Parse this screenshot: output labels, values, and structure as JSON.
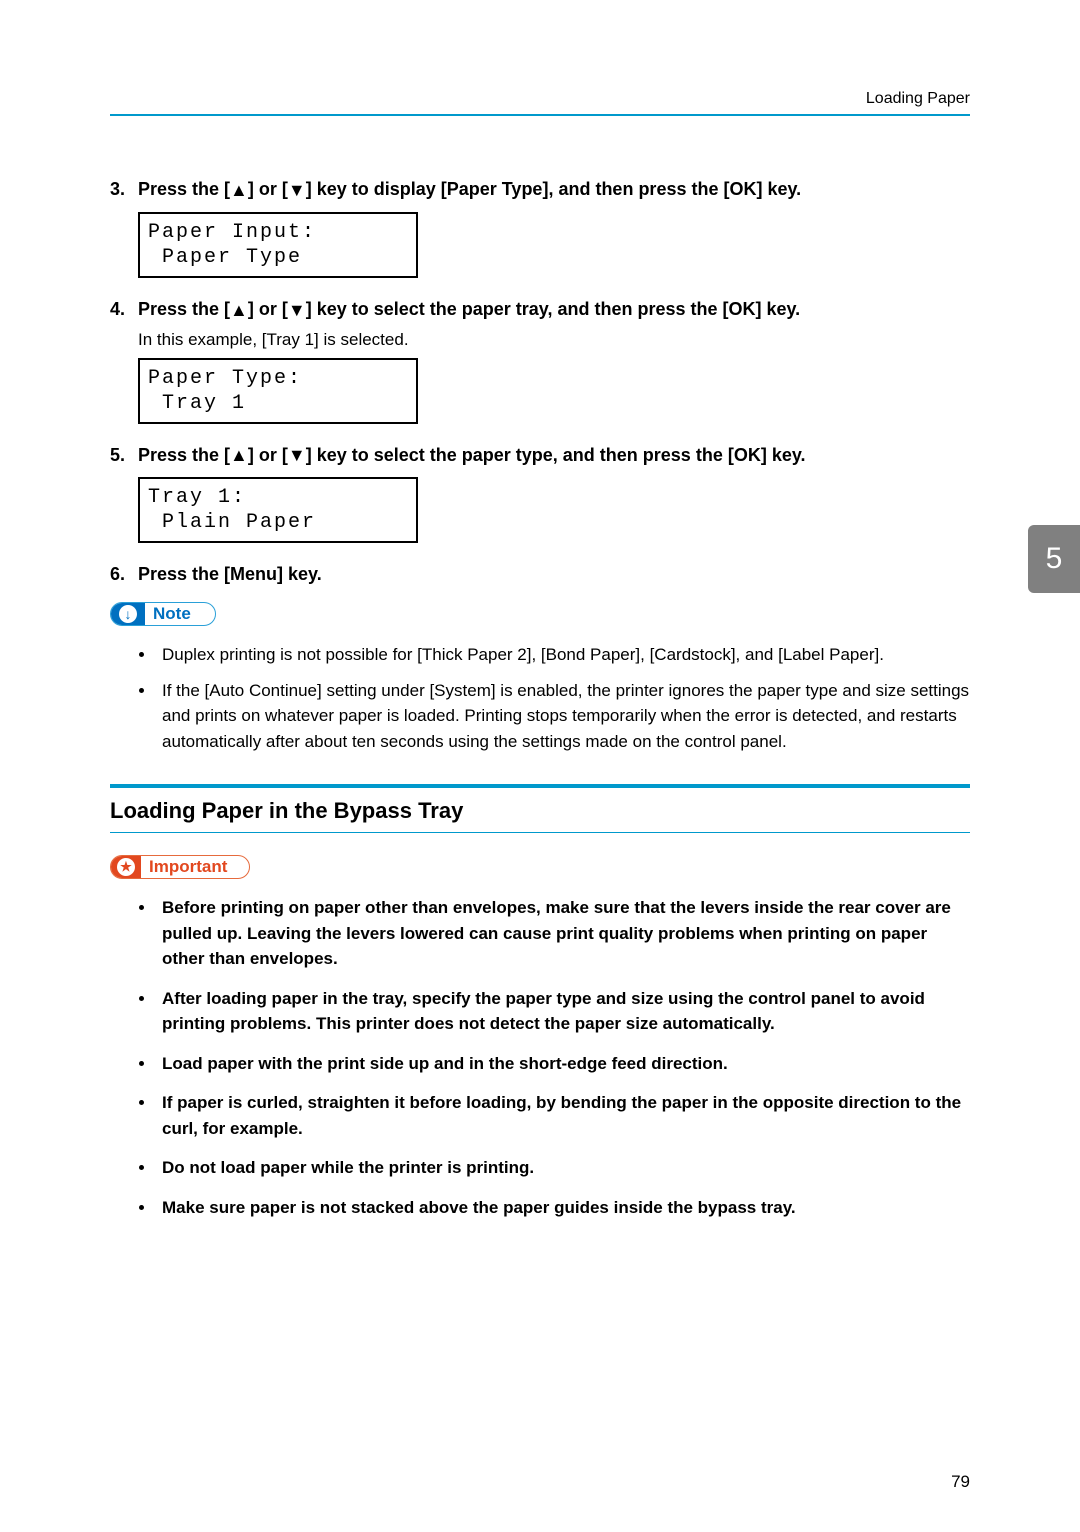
{
  "header": {
    "breadcrumb": "Loading Paper"
  },
  "steps": [
    {
      "num": "3.",
      "pre": "Press the [",
      "mid": "] or [",
      "post": "] key to display [Paper Type], and then press the [OK] key.",
      "sub": null,
      "lcd": {
        "line1": "Paper Input:",
        "line2": "Paper Type"
      }
    },
    {
      "num": "4.",
      "pre": "Press the [",
      "mid": "] or [",
      "post": "] key to select the paper tray, and then press the [OK] key.",
      "sub": "In this example, [Tray 1] is selected.",
      "lcd": {
        "line1": "Paper Type:",
        "line2": "Tray 1"
      }
    },
    {
      "num": "5.",
      "pre": "Press the [",
      "mid": "] or [",
      "post": "] key to select the paper type, and then press the [OK] key.",
      "sub": null,
      "lcd": {
        "line1": "Tray 1:",
        "line2": "Plain Paper"
      }
    },
    {
      "num": "6.",
      "text": "Press the [Menu] key.",
      "sub": null,
      "lcd": null
    }
  ],
  "note": {
    "label": "Note",
    "icon": "↓",
    "bullets": [
      "Duplex printing is not possible for [Thick Paper 2], [Bond Paper], [Cardstock], and [Label Paper].",
      "If the [Auto Continue] setting under [System] is enabled, the printer ignores the paper type and size settings and prints on whatever paper is loaded. Printing stops temporarily when the error is detected, and restarts automatically after about ten seconds using the settings made on the control panel."
    ]
  },
  "section": {
    "heading": "Loading Paper in the Bypass Tray"
  },
  "important": {
    "label": "Important",
    "icon": "★",
    "bullets": [
      "Before printing on paper other than envelopes, make sure that the levers inside the rear cover are pulled up. Leaving the levers lowered can cause print quality problems when printing on paper other than envelopes.",
      "After loading paper in the tray, specify the paper type and size using the control panel to avoid printing problems. This printer does not detect the paper size automatically.",
      "Load paper with the print side up and in the short-edge feed direction.",
      "If paper is curled, straighten it before loading, by bending the paper in the opposite direction to the curl, for example.",
      "Do not load paper while the printer is printing.",
      "Make sure paper is not stacked above the paper guides inside the bypass tray."
    ]
  },
  "sidetab": "5",
  "page_number": "79",
  "glyphs": {
    "up": "▲",
    "down": "▼"
  },
  "colors": {
    "accent_blue": "#0099cc",
    "note_blue": "#0070c0",
    "important_red": "#e2481f",
    "sidetab_gray": "#808080"
  }
}
